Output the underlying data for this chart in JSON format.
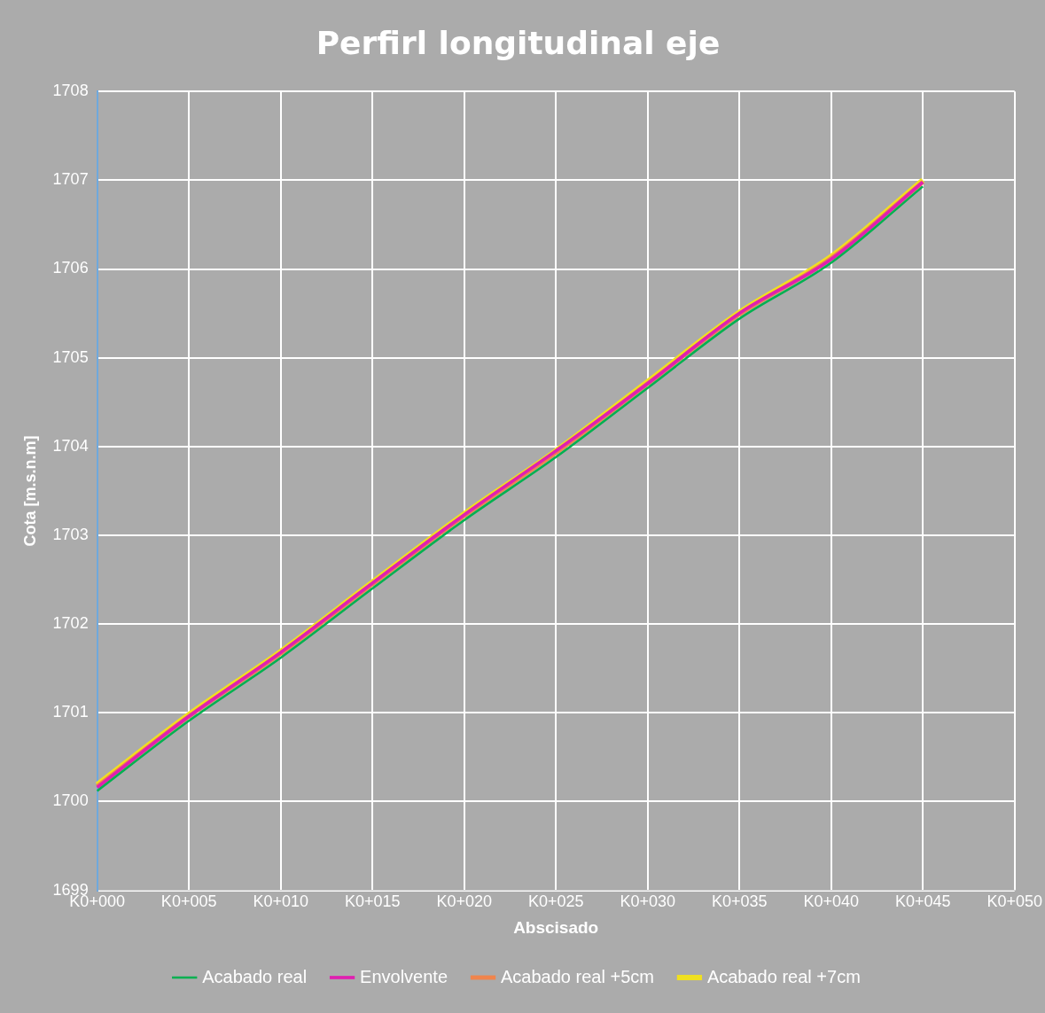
{
  "chart_data": {
    "type": "line",
    "title": "Perfirl longitudinal eje",
    "xlabel": "Abscisado",
    "ylabel": "Cota [m.s.n.m]",
    "categories": [
      "K0+000",
      "K0+005",
      "K0+010",
      "K0+015",
      "K0+020",
      "K0+025",
      "K0+030",
      "K0+035",
      "K0+040",
      "K0+045",
      "K0+050"
    ],
    "series": [
      {
        "name": "Acabado real",
        "color": "#00b050",
        "values": [
          1700.12,
          1700.91,
          1701.62,
          1702.4,
          1703.17,
          1703.88,
          1704.66,
          1705.44,
          1706.07,
          1706.93,
          null
        ]
      },
      {
        "name": "Envolvente",
        "color": "#e020b0",
        "values": [
          1700.16,
          1700.96,
          1701.68,
          1702.46,
          1703.23,
          1703.95,
          1704.71,
          1705.5,
          1706.11,
          1706.98,
          null
        ]
      },
      {
        "name": "Acabado real +5cm",
        "color": "#f0844c",
        "values": [
          1700.17,
          1700.96,
          1701.67,
          1702.45,
          1703.22,
          1703.93,
          1704.71,
          1705.49,
          1706.12,
          1706.98,
          null
        ]
      },
      {
        "name": "Acabado real +7cm",
        "color": "#f0e020",
        "values": [
          1700.19,
          1700.98,
          1701.69,
          1702.47,
          1703.24,
          1703.95,
          1704.73,
          1705.51,
          1706.14,
          1707,
          null
        ]
      }
    ],
    "ylim": [
      1699,
      1708
    ],
    "yticks": [
      1699,
      1700,
      1701,
      1702,
      1703,
      1704,
      1705,
      1706,
      1707,
      1708
    ],
    "grid": true,
    "legend": "bottom",
    "marker": "none",
    "line_style": "solid"
  }
}
